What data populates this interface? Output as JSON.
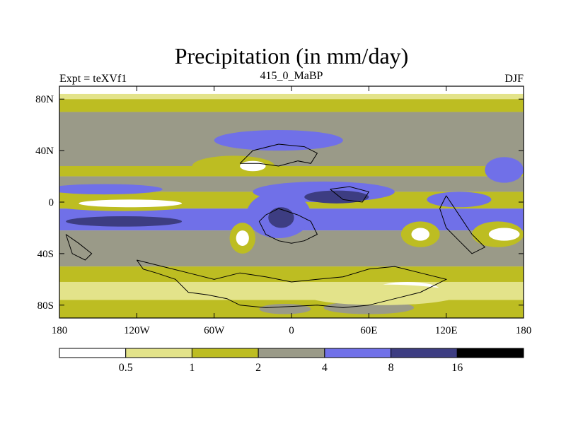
{
  "chart_data": {
    "type": "heatmap",
    "title": "Precipitation (in mm/day)",
    "subtitle_left": "Expt = teXVf1",
    "subtitle_center": "415_0_MaBP",
    "subtitle_right": "DJF",
    "x_ticks": [
      {
        "value": -180,
        "label": "180"
      },
      {
        "value": -120,
        "label": "120W"
      },
      {
        "value": -60,
        "label": "60W"
      },
      {
        "value": 0,
        "label": "0"
      },
      {
        "value": 60,
        "label": "60E"
      },
      {
        "value": 120,
        "label": "120E"
      },
      {
        "value": 180,
        "label": "180"
      }
    ],
    "y_ticks": [
      {
        "value": 80,
        "label": "80N"
      },
      {
        "value": 40,
        "label": "40N"
      },
      {
        "value": 0,
        "label": "0"
      },
      {
        "value": -40,
        "label": "40S"
      },
      {
        "value": -80,
        "label": "80S"
      }
    ],
    "xlim": [
      -180,
      180
    ],
    "ylim": [
      -90,
      90
    ],
    "colorbar": {
      "levels": [
        "0.5",
        "1",
        "2",
        "4",
        "8",
        "16"
      ],
      "colors": [
        "#ffffff",
        "#e3e38a",
        "#bdbd22",
        "#9a9a88",
        "#7070e8",
        "#3d3d82",
        "#000000"
      ]
    },
    "bands": [
      {
        "lat_top": 90,
        "lat_bottom": 84,
        "level": 0
      },
      {
        "lat_top": 84,
        "lat_bottom": 80,
        "level": 1
      },
      {
        "lat_top": 80,
        "lat_bottom": 70,
        "level": 2
      },
      {
        "lat_top": 70,
        "lat_bottom": 28,
        "level": 3
      },
      {
        "lat_top": 28,
        "lat_bottom": 20,
        "level": 2
      },
      {
        "lat_top": 20,
        "lat_bottom": 8,
        "level": 3
      },
      {
        "lat_top": 8,
        "lat_bottom": -5,
        "level": 2
      },
      {
        "lat_top": -5,
        "lat_bottom": -22,
        "level": 4
      },
      {
        "lat_top": -22,
        "lat_bottom": -50,
        "level": 3
      },
      {
        "lat_top": -50,
        "lat_bottom": -62,
        "level": 2
      },
      {
        "lat_top": -62,
        "lat_bottom": -76,
        "level": 1
      },
      {
        "lat_top": -76,
        "lat_bottom": -90,
        "level": 2
      }
    ],
    "patches": [
      {
        "lon": -10,
        "lat": 48,
        "rlon": 50,
        "rlat": 8,
        "level": 4
      },
      {
        "lon": -45,
        "lat": 28,
        "rlon": 32,
        "rlat": 8,
        "level": 2
      },
      {
        "lon": -30,
        "lat": 28,
        "rlon": 10,
        "rlat": 4,
        "level": 0
      },
      {
        "lon": -145,
        "lat": 10,
        "rlon": 45,
        "rlat": 4,
        "level": 4
      },
      {
        "lon": -130,
        "lat": -1,
        "rlon": 60,
        "rlat": 6,
        "level": 2
      },
      {
        "lon": -125,
        "lat": -1,
        "rlon": 40,
        "rlat": 3,
        "level": 0
      },
      {
        "lon": -130,
        "lat": -15,
        "rlon": 45,
        "rlat": 4,
        "level": 5
      },
      {
        "lon": 25,
        "lat": 8,
        "rlon": 55,
        "rlat": 8,
        "level": 4
      },
      {
        "lon": 35,
        "lat": 4,
        "rlon": 25,
        "rlat": 5,
        "level": 5
      },
      {
        "lon": -10,
        "lat": -10,
        "rlon": 25,
        "rlat": 18,
        "level": 4
      },
      {
        "lon": -8,
        "lat": -12,
        "rlon": 10,
        "rlat": 8,
        "level": 5
      },
      {
        "lon": -38,
        "lat": -28,
        "rlon": 10,
        "rlat": 12,
        "level": 2
      },
      {
        "lon": -38,
        "lat": -28,
        "rlon": 5,
        "rlat": 6,
        "level": 0
      },
      {
        "lon": 100,
        "lat": -25,
        "rlon": 15,
        "rlat": 10,
        "level": 2
      },
      {
        "lon": 100,
        "lat": -25,
        "rlon": 7,
        "rlat": 5,
        "level": 0
      },
      {
        "lon": 160,
        "lat": -25,
        "rlon": 20,
        "rlat": 10,
        "level": 2
      },
      {
        "lon": 165,
        "lat": -25,
        "rlon": 12,
        "rlat": 5,
        "level": 0
      },
      {
        "lon": 130,
        "lat": 2,
        "rlon": 25,
        "rlat": 6,
        "level": 4
      },
      {
        "lon": 165,
        "lat": 25,
        "rlon": 15,
        "rlat": 10,
        "level": 4
      },
      {
        "lon": 60,
        "lat": -82,
        "rlon": 35,
        "rlat": 5,
        "level": 3
      },
      {
        "lon": -5,
        "lat": -83,
        "rlon": 20,
        "rlat": 4,
        "level": 3
      },
      {
        "lon": 90,
        "lat": -68,
        "rlon": 25,
        "rlat": 6,
        "level": 0
      },
      {
        "lon": 70,
        "lat": -72,
        "rlon": 60,
        "rlat": 8,
        "level": 1
      }
    ],
    "land_outlines": [
      [
        [
          -120,
          -45
        ],
        [
          -115,
          -52
        ],
        [
          -105,
          -55
        ],
        [
          -90,
          -60
        ],
        [
          -80,
          -70
        ],
        [
          -65,
          -72
        ],
        [
          -50,
          -75
        ],
        [
          -40,
          -80
        ],
        [
          -20,
          -82
        ],
        [
          0,
          -81
        ],
        [
          20,
          -80
        ],
        [
          40,
          -82
        ],
        [
          60,
          -80
        ],
        [
          80,
          -75
        ],
        [
          100,
          -70
        ],
        [
          120,
          -60
        ],
        [
          100,
          -55
        ],
        [
          80,
          -50
        ],
        [
          60,
          -52
        ],
        [
          40,
          -58
        ],
        [
          20,
          -60
        ],
        [
          0,
          -62
        ],
        [
          -20,
          -58
        ],
        [
          -40,
          -55
        ],
        [
          -60,
          -60
        ],
        [
          -80,
          -55
        ],
        [
          -100,
          -50
        ],
        [
          -120,
          -45
        ]
      ],
      [
        [
          -20,
          -10
        ],
        [
          -10,
          -5
        ],
        [
          5,
          -10
        ],
        [
          15,
          -15
        ],
        [
          20,
          -25
        ],
        [
          10,
          -30
        ],
        [
          0,
          -32
        ],
        [
          -10,
          -30
        ],
        [
          -20,
          -25
        ],
        [
          -25,
          -15
        ],
        [
          -20,
          -10
        ]
      ],
      [
        [
          -40,
          30
        ],
        [
          -30,
          40
        ],
        [
          -10,
          45
        ],
        [
          10,
          43
        ],
        [
          20,
          38
        ],
        [
          15,
          30
        ],
        [
          5,
          32
        ],
        [
          -10,
          28
        ],
        [
          -25,
          30
        ],
        [
          -40,
          30
        ]
      ],
      [
        [
          30,
          10
        ],
        [
          45,
          12
        ],
        [
          60,
          8
        ],
        [
          55,
          0
        ],
        [
          40,
          2
        ],
        [
          30,
          10
        ]
      ],
      [
        [
          120,
          5
        ],
        [
          130,
          -10
        ],
        [
          140,
          -25
        ],
        [
          150,
          -35
        ],
        [
          140,
          -40
        ],
        [
          130,
          -30
        ],
        [
          120,
          -20
        ],
        [
          115,
          -5
        ],
        [
          120,
          5
        ]
      ],
      [
        [
          -175,
          -25
        ],
        [
          -165,
          -32
        ],
        [
          -155,
          -40
        ],
        [
          -160,
          -45
        ],
        [
          -170,
          -40
        ],
        [
          -175,
          -25
        ]
      ]
    ]
  }
}
